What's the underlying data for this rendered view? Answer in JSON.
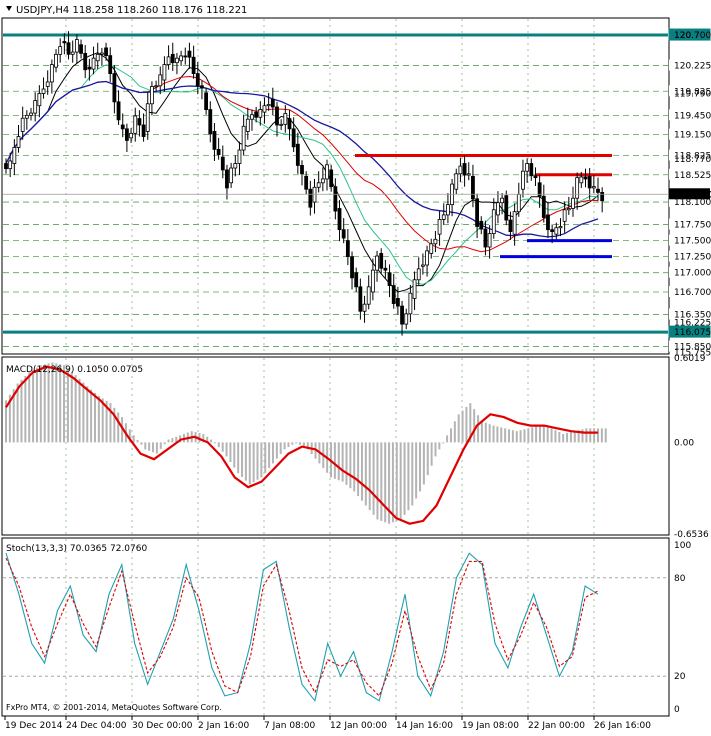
{
  "colors": {
    "background": "#ffffff",
    "grid": "#5aa05a",
    "candles": "#000000",
    "resistance": "#e00000",
    "support": "#0000e0",
    "major_level": "#0a7f7f",
    "ma_fast": "#000000",
    "ma_mid": "#2ec48a",
    "ma_slow": "#e00000",
    "ma_long": "#1a1aa0",
    "macd_hist": "#b4b4b4",
    "macd_signal": "#e00000",
    "stoch_main": "#20a0b0",
    "stoch_signal": "#e00000"
  },
  "main": {
    "title": "USDJPY,H4  118.258 118.260 118.176 118.221",
    "current_price": "118.221",
    "price_scale": [
      "120.700",
      "120.225",
      "119.825",
      "119.450",
      "119.150",
      "118.825",
      "118.525",
      "118.100",
      "117.750",
      "117.500",
      "117.250",
      "117.000",
      "116.700",
      "116.350",
      "116.075",
      "115.850"
    ],
    "edge_labels": [
      "120.7",
      "119.790",
      "118.770",
      "116.225",
      "115.755"
    ],
    "scale_min": 115.75,
    "scale_max": 120.95
  },
  "macd": {
    "label": "MACD(12,26,9) 0.1050 0.0705",
    "scale": [
      "0.6019",
      "0.00",
      "-0.6536"
    ]
  },
  "stoch": {
    "label": "Stoch(13,3,3) 70.0365 72.0760",
    "scale": [
      "100",
      "80",
      "20",
      "0"
    ]
  },
  "copyright": "FxPro MT4, © 2001-2014, MetaQuotes Software Corp.",
  "time_axis": [
    "19 Dec 2014",
    "24 Dec 04:00",
    "30 Dec 00:00",
    "2 Jan 16:00",
    "7 Jan 08:00",
    "12 Jan 00:00",
    "14 Jan 16:00",
    "19 Jan 08:00",
    "22 Jan 00:00",
    "26 Jan 16:00"
  ],
  "chart_data": [
    {
      "type": "candlestick",
      "title": "USDJPY,H4",
      "ohlc": [
        118.258,
        118.26,
        118.176,
        118.221
      ],
      "ylim": [
        115.755,
        120.95
      ],
      "close_path": [
        118.7,
        119.2,
        119.45,
        119.6,
        119.9,
        120.2,
        120.6,
        120.4,
        120.55,
        120.2,
        120.3,
        120.5,
        120.1,
        119.3,
        119.1,
        119.4,
        119.2,
        119.9,
        120.0,
        120.4,
        120.3,
        120.45,
        120.1,
        119.8,
        119.2,
        118.8,
        118.4,
        118.7,
        119.2,
        119.5,
        119.5,
        119.7,
        119.3,
        119.4,
        119.0,
        118.5,
        118.1,
        118.4,
        118.6,
        118.0,
        117.5,
        117.0,
        116.4,
        116.7,
        117.3,
        117.0,
        116.6,
        116.2,
        116.6,
        117.1,
        117.3,
        117.6,
        117.9,
        118.3,
        118.7,
        118.5,
        117.8,
        117.4,
        117.9,
        118.2,
        117.6,
        118.3,
        118.7,
        118.4,
        117.9,
        117.6,
        117.8,
        118.0,
        118.4,
        118.5,
        118.3,
        118.2
      ],
      "levels": {
        "resistance": [
          118.825,
          118.525
        ],
        "support": [
          117.5,
          117.25
        ],
        "major": [
          120.7,
          116.075
        ]
      }
    },
    {
      "type": "bar",
      "title": "MACD(12,26,9)",
      "ylim": [
        -0.6536,
        0.6019
      ],
      "values": [
        0.3,
        0.42,
        0.5,
        0.55,
        0.57,
        0.55,
        0.48,
        0.4,
        0.33,
        0.28,
        0.18,
        0.05,
        -0.05,
        -0.08,
        0.02,
        0.05,
        0.08,
        0.06,
        0.0,
        -0.1,
        -0.22,
        -0.3,
        -0.25,
        -0.15,
        -0.05,
        0.0,
        -0.05,
        -0.15,
        -0.25,
        -0.28,
        -0.35,
        -0.45,
        -0.55,
        -0.58,
        -0.55,
        -0.45,
        -0.3,
        -0.1,
        0.05,
        0.2,
        0.28,
        0.15,
        0.12,
        0.1,
        0.08,
        0.1,
        0.12,
        0.1,
        0.06,
        0.08,
        0.1,
        0.1
      ],
      "signal": [
        0.25,
        0.4,
        0.5,
        0.54,
        0.52,
        0.46,
        0.38,
        0.3,
        0.2,
        0.05,
        -0.08,
        -0.12,
        -0.05,
        0.02,
        0.04,
        0.0,
        -0.1,
        -0.25,
        -0.32,
        -0.28,
        -0.18,
        -0.08,
        -0.03,
        -0.05,
        -0.12,
        -0.2,
        -0.26,
        -0.34,
        -0.44,
        -0.54,
        -0.58,
        -0.56,
        -0.45,
        -0.25,
        -0.05,
        0.12,
        0.2,
        0.18,
        0.14,
        0.12,
        0.12,
        0.1,
        0.08,
        0.07,
        0.07
      ]
    },
    {
      "type": "line",
      "title": "Stoch(13,3,3)",
      "ylim": [
        0,
        100
      ],
      "series": [
        {
          "values": [
            95,
            70,
            40,
            28,
            60,
            75,
            45,
            35,
            70,
            88,
            40,
            15,
            35,
            55,
            88,
            60,
            25,
            8,
            10,
            40,
            85,
            90,
            50,
            15,
            5,
            40,
            20,
            35,
            10,
            5,
            35,
            70,
            20,
            8,
            35,
            80,
            95,
            88,
            40,
            25,
            50,
            70,
            45,
            20,
            35,
            75,
            70
          ]
        },
        {
          "values": [
            92,
            75,
            50,
            32,
            52,
            70,
            52,
            38,
            62,
            84,
            52,
            22,
            32,
            50,
            80,
            68,
            35,
            14,
            10,
            32,
            75,
            88,
            60,
            25,
            10,
            30,
            26,
            30,
            16,
            8,
            28,
            60,
            32,
            12,
            28,
            70,
            90,
            90,
            52,
            30,
            45,
            65,
            50,
            26,
            32,
            68,
            72
          ]
        }
      ]
    }
  ]
}
